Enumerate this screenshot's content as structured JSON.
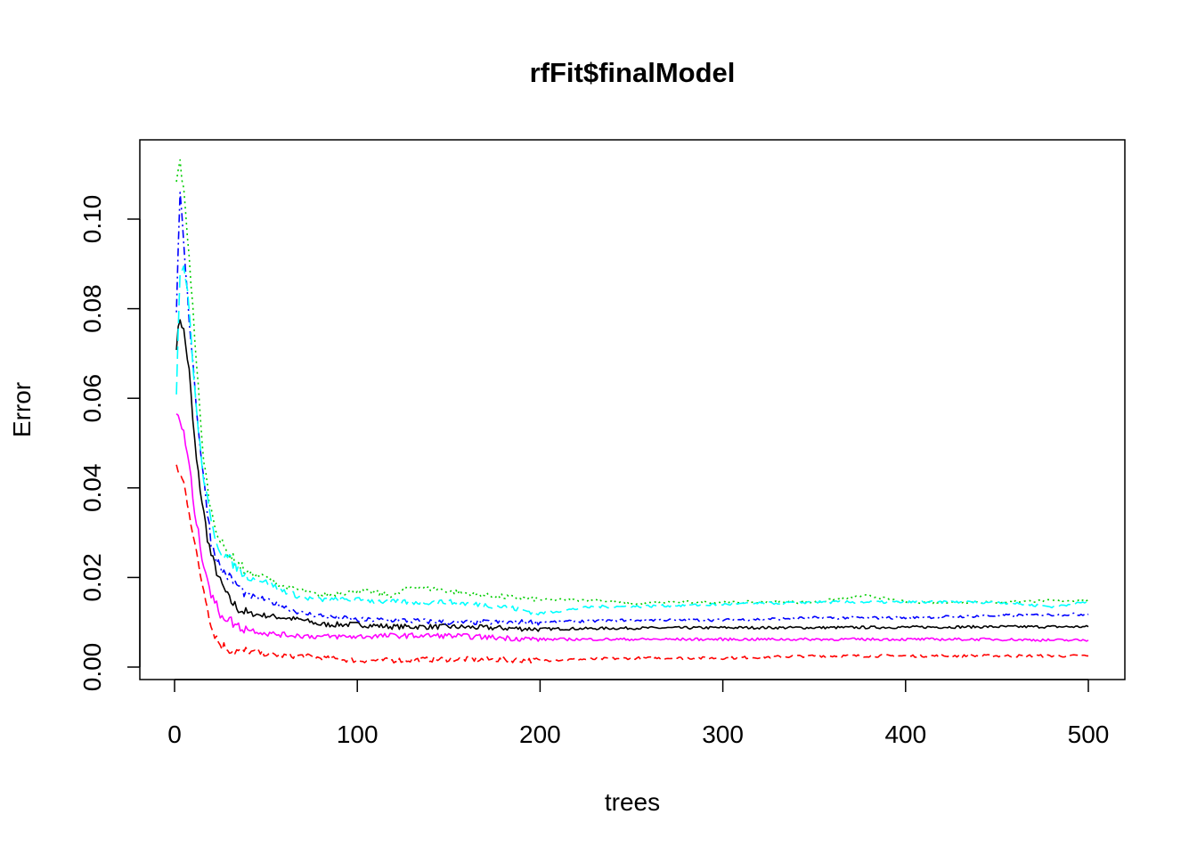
{
  "chart_data": {
    "type": "line",
    "title": "rfFit$finalModel",
    "xlabel": "trees",
    "ylabel": "Error",
    "xlim": [
      1,
      500
    ],
    "ylim": [
      0,
      0.1125
    ],
    "xticks": [
      0,
      100,
      200,
      300,
      400,
      500
    ],
    "xtick_labels": [
      "0",
      "100",
      "200",
      "300",
      "400",
      "500"
    ],
    "yticks": [
      0,
      0.02,
      0.04,
      0.06,
      0.08,
      0.1
    ],
    "ytick_labels": [
      "0.00",
      "0.02",
      "0.04",
      "0.06",
      "0.08",
      "0.10"
    ],
    "grid": false,
    "legend": "none",
    "series": [
      {
        "color": "#000000",
        "linestyle": "solid",
        "x": [
          1,
          3,
          5,
          8,
          10,
          12,
          15,
          18,
          20,
          25,
          30,
          35,
          40,
          50,
          60,
          70,
          80,
          100,
          120,
          150,
          200,
          250,
          300,
          350,
          400,
          450,
          500
        ],
        "y": [
          0.072,
          0.078,
          0.075,
          0.066,
          0.055,
          0.046,
          0.037,
          0.029,
          0.025,
          0.019,
          0.015,
          0.013,
          0.012,
          0.0115,
          0.011,
          0.0105,
          0.0095,
          0.0095,
          0.009,
          0.009,
          0.0085,
          0.0087,
          0.0088,
          0.0088,
          0.0089,
          0.009,
          0.009
        ]
      },
      {
        "color": "#ff0000",
        "linestyle": "dashed",
        "x": [
          1,
          3,
          5,
          8,
          10,
          12,
          15,
          18,
          20,
          25,
          30,
          35,
          40,
          50,
          60,
          70,
          80,
          100,
          120,
          150,
          200,
          250,
          300,
          350,
          400,
          450,
          500
        ],
        "y": [
          0.045,
          0.043,
          0.041,
          0.035,
          0.03,
          0.025,
          0.019,
          0.014,
          0.009,
          0.005,
          0.004,
          0.0035,
          0.0035,
          0.003,
          0.0025,
          0.0025,
          0.002,
          0.0015,
          0.0015,
          0.0018,
          0.0015,
          0.002,
          0.002,
          0.0025,
          0.0025,
          0.0025,
          0.0025
        ]
      },
      {
        "color": "#00cd00",
        "linestyle": "dotted",
        "x": [
          1,
          3,
          5,
          8,
          10,
          12,
          15,
          18,
          20,
          25,
          30,
          35,
          40,
          50,
          60,
          70,
          80,
          100,
          120,
          130,
          150,
          170,
          200,
          230,
          250,
          270,
          300,
          350,
          380,
          400,
          450,
          500
        ],
        "y": [
          0.108,
          0.113,
          0.106,
          0.092,
          0.08,
          0.068,
          0.05,
          0.04,
          0.035,
          0.028,
          0.025,
          0.023,
          0.021,
          0.02,
          0.018,
          0.017,
          0.016,
          0.017,
          0.016,
          0.018,
          0.017,
          0.016,
          0.015,
          0.015,
          0.014,
          0.0145,
          0.0145,
          0.0145,
          0.016,
          0.0145,
          0.0145,
          0.015
        ]
      },
      {
        "color": "#0000ff",
        "linestyle": "dotdash",
        "x": [
          1,
          3,
          5,
          8,
          10,
          12,
          15,
          18,
          20,
          25,
          30,
          35,
          40,
          50,
          60,
          70,
          80,
          100,
          120,
          150,
          200,
          250,
          300,
          350,
          400,
          450,
          500
        ],
        "y": [
          0.08,
          0.105,
          0.095,
          0.078,
          0.068,
          0.058,
          0.045,
          0.035,
          0.028,
          0.022,
          0.02,
          0.018,
          0.016,
          0.015,
          0.0135,
          0.012,
          0.0115,
          0.0105,
          0.0105,
          0.01,
          0.01,
          0.0105,
          0.0105,
          0.011,
          0.011,
          0.0115,
          0.0118
        ]
      },
      {
        "color": "#00ffff",
        "linestyle": "longdash",
        "x": [
          1,
          3,
          5,
          8,
          10,
          12,
          15,
          18,
          20,
          25,
          30,
          35,
          40,
          50,
          60,
          70,
          80,
          100,
          120,
          150,
          180,
          200,
          230,
          250,
          300,
          350,
          400,
          450,
          480,
          500
        ],
        "y": [
          0.062,
          0.088,
          0.09,
          0.08,
          0.068,
          0.057,
          0.045,
          0.037,
          0.032,
          0.026,
          0.024,
          0.022,
          0.02,
          0.019,
          0.017,
          0.0155,
          0.015,
          0.015,
          0.0145,
          0.0145,
          0.0135,
          0.012,
          0.0135,
          0.0135,
          0.014,
          0.0145,
          0.0145,
          0.0145,
          0.0135,
          0.0145
        ]
      },
      {
        "color": "#ff00ff",
        "linestyle": "solid",
        "x": [
          1,
          3,
          5,
          8,
          10,
          12,
          15,
          18,
          20,
          25,
          30,
          35,
          40,
          50,
          60,
          70,
          80,
          100,
          120,
          150,
          200,
          250,
          300,
          350,
          400,
          450,
          480,
          500
        ],
        "y": [
          0.057,
          0.055,
          0.052,
          0.045,
          0.038,
          0.032,
          0.025,
          0.02,
          0.016,
          0.012,
          0.0105,
          0.009,
          0.0085,
          0.0075,
          0.0072,
          0.007,
          0.0068,
          0.0068,
          0.007,
          0.007,
          0.0062,
          0.0062,
          0.0062,
          0.0062,
          0.0062,
          0.0062,
          0.006,
          0.006
        ]
      }
    ]
  }
}
